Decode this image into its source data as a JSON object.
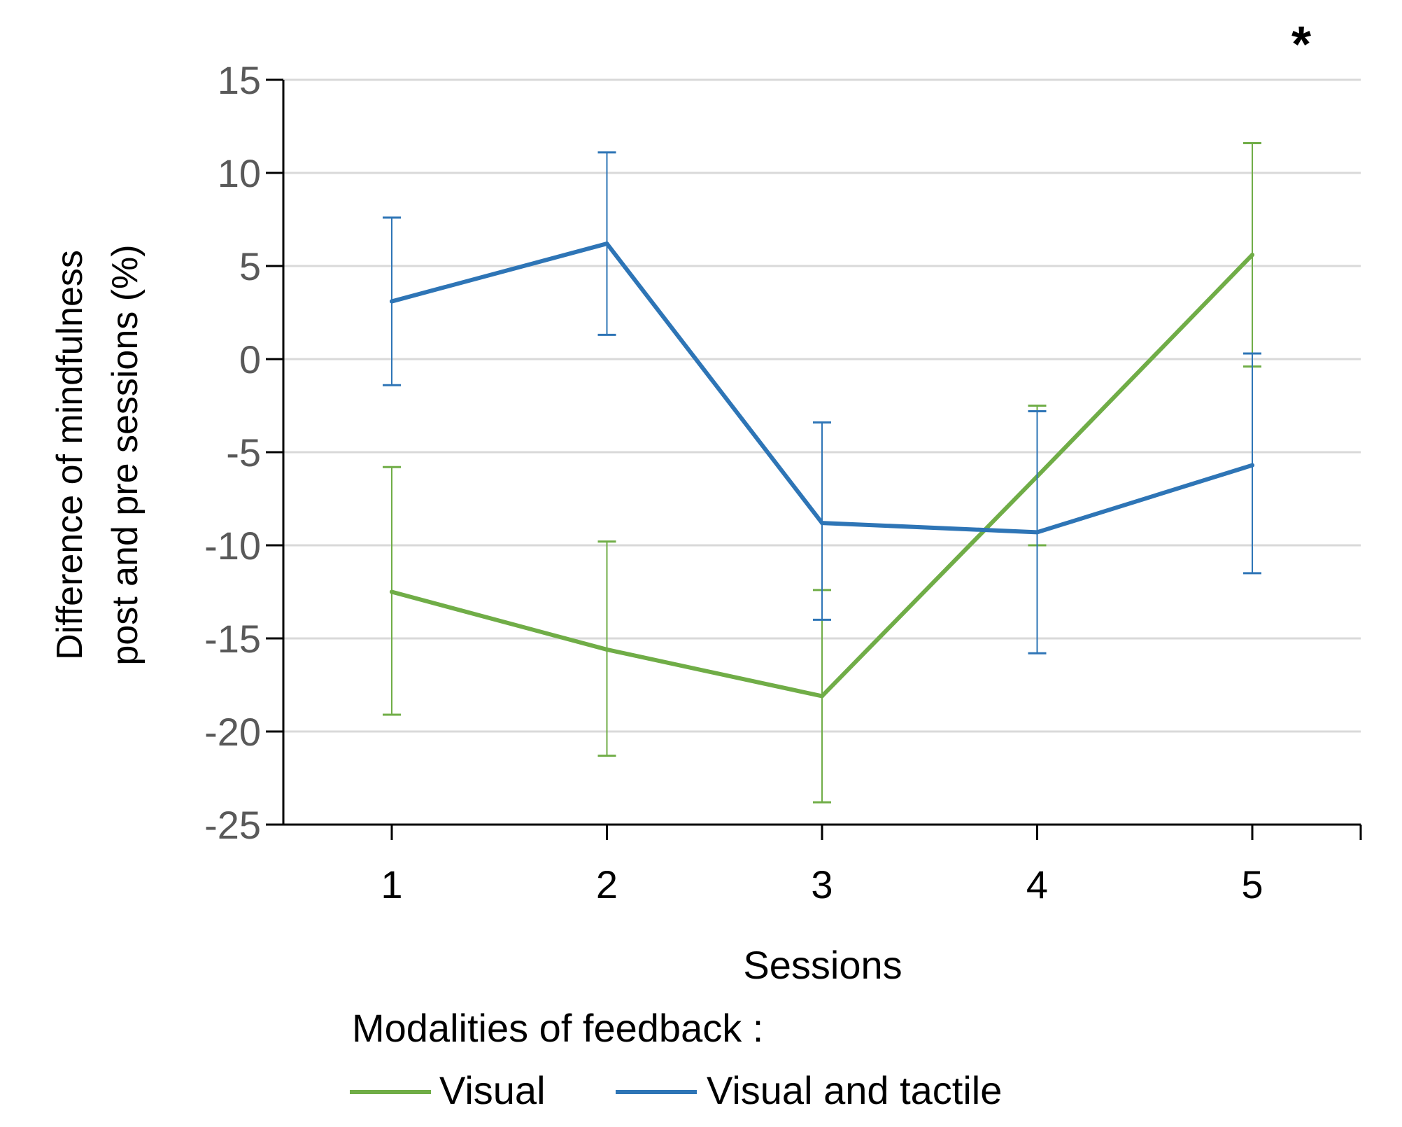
{
  "chart_data": {
    "type": "line",
    "title": "",
    "xlabel": "Sessions",
    "ylabel_lines": [
      "Difference of mindfulness",
      "post and pre sessions (%)"
    ],
    "categories": [
      "1",
      "2",
      "3",
      "4",
      "5"
    ],
    "ylim": [
      -25,
      15
    ],
    "yticks": [
      15,
      10,
      5,
      0,
      -5,
      -10,
      -15,
      -20,
      -25
    ],
    "ytick_labels": [
      "15",
      "10",
      "5",
      "0",
      "-5",
      "-10",
      "-15",
      "-20",
      "-25"
    ],
    "grid": true,
    "series": [
      {
        "name": "Visual",
        "color": "#70ad47",
        "values": [
          -12.5,
          -15.6,
          -18.1,
          -6.3,
          5.6
        ],
        "error_low": [
          -19.1,
          -21.3,
          -23.8,
          -10.0,
          -0.4
        ],
        "error_high": [
          -5.8,
          -9.8,
          -12.4,
          -2.5,
          11.6
        ]
      },
      {
        "name": "Visual and tactile",
        "color": "#2e75b6",
        "values": [
          3.1,
          6.2,
          -8.8,
          -9.3,
          -5.7
        ],
        "error_low": [
          -1.4,
          1.3,
          -14.0,
          -15.8,
          -11.5
        ],
        "error_high": [
          7.6,
          11.1,
          -3.4,
          -2.8,
          0.3
        ]
      }
    ],
    "annotation": {
      "text": "*",
      "category": "5"
    },
    "legend": {
      "title": "Modalities of feedback :",
      "placement": "bottom",
      "entries": [
        "Visual",
        "Visual and tactile"
      ]
    }
  }
}
